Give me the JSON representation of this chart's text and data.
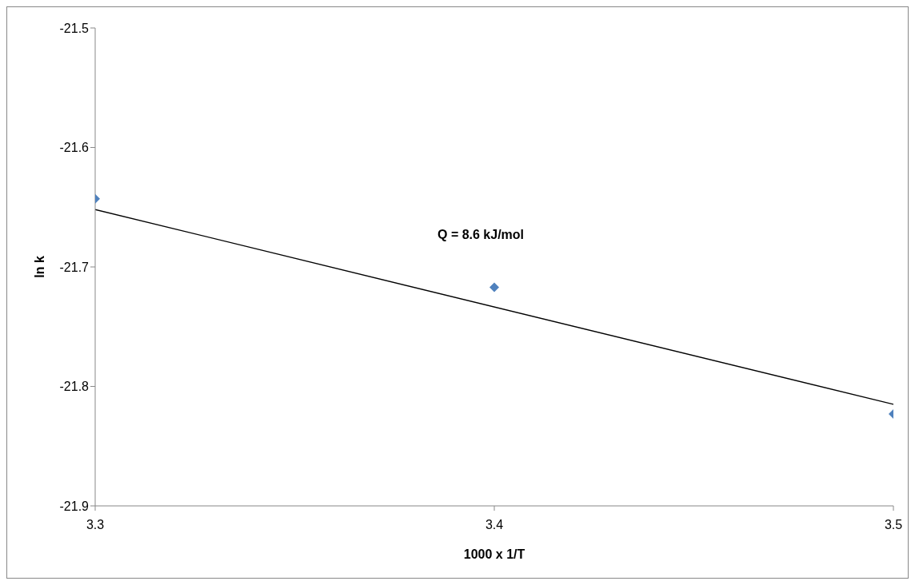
{
  "chart_data": {
    "type": "scatter",
    "xlabel": "1000 x 1/T",
    "ylabel": "ln k",
    "grid": false,
    "legend": false,
    "xlim": [
      3.3,
      3.5
    ],
    "xticks": [
      3.3,
      3.4,
      3.5
    ],
    "ylim": [
      -21.9,
      -21.5
    ],
    "yticks": [
      -21.9,
      -21.8,
      -21.7,
      -21.6,
      -21.5
    ],
    "annotations": [
      "Q = 8.6 kJ/mol"
    ],
    "series": [
      {
        "marker": "diamond",
        "color": "#4f81bd",
        "x": [
          3.3,
          3.4,
          3.5
        ],
        "values": [
          -21.643,
          -21.717,
          -21.823
        ]
      },
      {
        "type": "line",
        "marker": "none",
        "color": "#000000",
        "x": [
          3.3,
          3.5
        ],
        "values": [
          -21.652,
          -21.815
        ]
      }
    ]
  }
}
